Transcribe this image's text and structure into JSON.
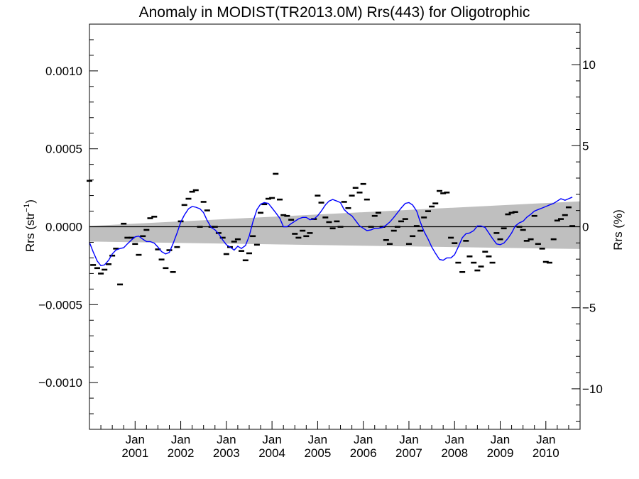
{
  "chart_data": {
    "type": "scatter",
    "title": "Anomaly in MODIST(TR2013.0M) Rrs(443) for Oligotrophic",
    "ylabel_left": {
      "text": "Rrs (str",
      "sup": "−1",
      "close": ")"
    },
    "ylabel_right": "Rrs (%)",
    "xlim": [
      2000.0,
      2010.75
    ],
    "ylim_left": [
      -0.0013,
      0.0013
    ],
    "ylim_right": [
      -12.5,
      12.5
    ],
    "left_ticks": [
      {
        "value": 0.001,
        "label": "0.0010"
      },
      {
        "value": 0.0005,
        "label": "0.0005"
      },
      {
        "value": 0.0,
        "label": "0.0000"
      },
      {
        "value": -0.0005,
        "label": "−0.0005"
      },
      {
        "value": -0.001,
        "label": "−0.0010"
      }
    ],
    "right_ticks": [
      {
        "value": 10,
        "label": "10"
      },
      {
        "value": 5,
        "label": "5"
      },
      {
        "value": 0,
        "label": "0"
      },
      {
        "value": -5,
        "label": "−5"
      },
      {
        "value": -10,
        "label": "−10"
      }
    ],
    "x_ticks": [
      {
        "value": 2001.0,
        "month": "Jan",
        "year": "2001"
      },
      {
        "value": 2002.0,
        "month": "Jan",
        "year": "2002"
      },
      {
        "value": 2003.0,
        "month": "Jan",
        "year": "2003"
      },
      {
        "value": 2004.0,
        "month": "Jan",
        "year": "2004"
      },
      {
        "value": 2005.0,
        "month": "Jan",
        "year": "2005"
      },
      {
        "value": 2006.0,
        "month": "Jan",
        "year": "2006"
      },
      {
        "value": 2007.0,
        "month": "Jan",
        "year": "2007"
      },
      {
        "value": 2008.0,
        "month": "Jan",
        "year": "2008"
      },
      {
        "value": 2009.0,
        "month": "Jan",
        "year": "2009"
      },
      {
        "value": 2010.0,
        "month": "Jan",
        "year": "2010"
      }
    ],
    "grid": false,
    "zero_line": true,
    "colors": {
      "points": "#000000",
      "smooth": "#0000ff",
      "band": "#bfbfbf",
      "zero": "#000000"
    },
    "band": {
      "start": 2000.0,
      "end": 2010.75,
      "upper": [
        5e-06,
        0.000163
      ],
      "lower": [
        -9.5e-05,
        -0.000143
      ]
    },
    "points": [
      [
        2000.0,
        0.000295
      ],
      [
        2000.08,
        -0.000245
      ],
      [
        2000.17,
        -0.000265
      ],
      [
        2000.25,
        -0.0003
      ],
      [
        2000.33,
        -0.000275
      ],
      [
        2000.42,
        -0.00024
      ],
      [
        2000.5,
        -0.000185
      ],
      [
        2000.58,
        -0.00014
      ],
      [
        2000.67,
        -0.00037
      ],
      [
        2000.75,
        2e-05
      ],
      [
        2000.83,
        -7e-05
      ],
      [
        2000.92,
        -7e-05
      ],
      [
        2001.0,
        -0.00011
      ],
      [
        2001.08,
        -0.00018
      ],
      [
        2001.17,
        -6e-05
      ],
      [
        2001.25,
        -2e-05
      ],
      [
        2001.33,
        5.5e-05
      ],
      [
        2001.42,
        6.5e-05
      ],
      [
        2001.5,
        -0.000145
      ],
      [
        2001.58,
        -0.00021
      ],
      [
        2001.67,
        -0.000265
      ],
      [
        2001.75,
        -0.00015
      ],
      [
        2001.83,
        -0.00029
      ],
      [
        2001.92,
        -0.00013
      ],
      [
        2002.0,
        3.5e-05
      ],
      [
        2002.08,
        0.00014
      ],
      [
        2002.17,
        0.00018
      ],
      [
        2002.25,
        0.000225
      ],
      [
        2002.33,
        0.000235
      ],
      [
        2002.42,
        0.0
      ],
      [
        2002.5,
        0.00016
      ],
      [
        2002.58,
        0.000105
      ],
      [
        2002.67,
        0.0
      ],
      [
        2002.75,
        0.0
      ],
      [
        2002.83,
        -4e-05
      ],
      [
        2002.92,
        -7e-05
      ],
      [
        2003.0,
        -0.000175
      ],
      [
        2003.08,
        -0.00013
      ],
      [
        2003.17,
        -9.5e-05
      ],
      [
        2003.25,
        -8e-05
      ],
      [
        2003.33,
        -0.000155
      ],
      [
        2003.42,
        -0.000215
      ],
      [
        2003.5,
        -0.00017
      ],
      [
        2003.58,
        -6e-05
      ],
      [
        2003.67,
        -0.000115
      ],
      [
        2003.75,
        9e-05
      ],
      [
        2003.83,
        0.000145
      ],
      [
        2003.92,
        0.00018
      ],
      [
        2004.0,
        0.000185
      ],
      [
        2004.08,
        0.00034
      ],
      [
        2004.17,
        0.000175
      ],
      [
        2004.25,
        7.5e-05
      ],
      [
        2004.33,
        7e-05
      ],
      [
        2004.42,
        4.5e-05
      ],
      [
        2004.5,
        -4.5e-05
      ],
      [
        2004.58,
        -7e-05
      ],
      [
        2004.67,
        -2.5e-05
      ],
      [
        2004.75,
        -6e-05
      ],
      [
        2004.83,
        -4e-05
      ],
      [
        2004.92,
        5e-05
      ],
      [
        2005.0,
        0.0002
      ],
      [
        2005.08,
        0.000155
      ],
      [
        2005.17,
        6e-05
      ],
      [
        2005.25,
        3e-05
      ],
      [
        2005.33,
        -1e-05
      ],
      [
        2005.42,
        3.5e-05
      ],
      [
        2005.5,
        0.0
      ],
      [
        2005.58,
        0.00016
      ],
      [
        2005.67,
        0.00012
      ],
      [
        2005.75,
        0.0002
      ],
      [
        2005.83,
        0.00025
      ],
      [
        2005.92,
        0.00022
      ],
      [
        2006.0,
        0.000275
      ],
      [
        2006.08,
        0.000175
      ],
      [
        2006.17,
        0.0
      ],
      [
        2006.25,
        7e-05
      ],
      [
        2006.33,
        9e-05
      ],
      [
        2006.42,
        0.0
      ],
      [
        2006.5,
        -8.5e-05
      ],
      [
        2006.58,
        -0.00011
      ],
      [
        2006.67,
        -2.5e-05
      ],
      [
        2006.75,
        0.0
      ],
      [
        2006.83,
        3.5e-05
      ],
      [
        2006.92,
        5e-05
      ],
      [
        2007.0,
        -0.00011
      ],
      [
        2007.08,
        -6e-05
      ],
      [
        2007.17,
        5e-06
      ],
      [
        2007.25,
        -2.5e-05
      ],
      [
        2007.33,
        6e-05
      ],
      [
        2007.42,
        0.0001
      ],
      [
        2007.5,
        0.00013
      ],
      [
        2007.58,
        0.00015
      ],
      [
        2007.67,
        0.00023
      ],
      [
        2007.75,
        0.000215
      ],
      [
        2007.83,
        0.00022
      ],
      [
        2007.92,
        -7e-05
      ],
      [
        2008.0,
        -0.000105
      ],
      [
        2008.08,
        -0.00023
      ],
      [
        2008.17,
        -0.00029
      ],
      [
        2008.25,
        -9e-05
      ],
      [
        2008.33,
        -0.00019
      ],
      [
        2008.42,
        -0.00023
      ],
      [
        2008.5,
        -0.00028
      ],
      [
        2008.58,
        -0.000255
      ],
      [
        2008.67,
        -0.00016
      ],
      [
        2008.75,
        -0.00019
      ],
      [
        2008.83,
        -0.00023
      ],
      [
        2008.92,
        -4e-05
      ],
      [
        2009.0,
        -8e-05
      ],
      [
        2009.08,
        -1e-05
      ],
      [
        2009.17,
        8e-05
      ],
      [
        2009.25,
        9e-05
      ],
      [
        2009.33,
        9.5e-05
      ],
      [
        2009.42,
        0.0
      ],
      [
        2009.5,
        -2e-05
      ],
      [
        2009.58,
        -9e-05
      ],
      [
        2009.67,
        -8e-05
      ],
      [
        2009.75,
        7e-05
      ],
      [
        2009.83,
        -0.00011
      ],
      [
        2009.92,
        -0.00014
      ],
      [
        2010.0,
        -0.000225
      ],
      [
        2010.08,
        -0.00023
      ],
      [
        2010.17,
        -8e-05
      ],
      [
        2010.25,
        4e-05
      ],
      [
        2010.33,
        5e-05
      ],
      [
        2010.42,
        7.5e-05
      ],
      [
        2010.5,
        0.000125
      ],
      [
        2010.58,
        5e-06
      ]
    ],
    "smoothed": [
      [
        2000.0,
        -0.0001
      ],
      [
        2000.08,
        -0.00016
      ],
      [
        2000.17,
        -0.00022
      ],
      [
        2000.25,
        -0.00025
      ],
      [
        2000.33,
        -0.000245
      ],
      [
        2000.42,
        -0.000215
      ],
      [
        2000.5,
        -0.000175
      ],
      [
        2000.58,
        -0.00015
      ],
      [
        2000.67,
        -0.00014
      ],
      [
        2000.75,
        -0.000135
      ],
      [
        2000.83,
        -0.00011
      ],
      [
        2000.92,
        -8.5e-05
      ],
      [
        2001.0,
        -6.5e-05
      ],
      [
        2001.08,
        -6e-05
      ],
      [
        2001.17,
        -8e-05
      ],
      [
        2001.25,
        -9.5e-05
      ],
      [
        2001.33,
        -9.5e-05
      ],
      [
        2001.42,
        -0.000105
      ],
      [
        2001.5,
        -0.00013
      ],
      [
        2001.58,
        -0.00016
      ],
      [
        2001.67,
        -0.000175
      ],
      [
        2001.75,
        -0.000165
      ],
      [
        2001.83,
        -0.00011
      ],
      [
        2001.92,
        -4e-05
      ],
      [
        2002.0,
        3e-05
      ],
      [
        2002.08,
        7.5e-05
      ],
      [
        2002.17,
        0.000115
      ],
      [
        2002.25,
        0.00013
      ],
      [
        2002.33,
        0.000125
      ],
      [
        2002.42,
        0.000115
      ],
      [
        2002.5,
        9e-05
      ],
      [
        2002.58,
        4e-05
      ],
      [
        2002.67,
        -5e-06
      ],
      [
        2002.75,
        -2e-05
      ],
      [
        2002.83,
        -4.5e-05
      ],
      [
        2002.92,
        -8.5e-05
      ],
      [
        2003.0,
        -0.000115
      ],
      [
        2003.08,
        -0.00013
      ],
      [
        2003.17,
        -0.00015
      ],
      [
        2003.25,
        -0.000125
      ],
      [
        2003.33,
        -0.00014
      ],
      [
        2003.42,
        -0.00012
      ],
      [
        2003.5,
        -6e-05
      ],
      [
        2003.58,
        3e-05
      ],
      [
        2003.67,
        0.00011
      ],
      [
        2003.75,
        0.000145
      ],
      [
        2003.83,
        0.000155
      ],
      [
        2003.92,
        0.00015
      ],
      [
        2004.0,
        0.00012
      ],
      [
        2004.08,
        9e-05
      ],
      [
        2004.17,
        5.5e-05
      ],
      [
        2004.25,
        0.0
      ],
      [
        2004.33,
        0.0
      ],
      [
        2004.42,
        2e-05
      ],
      [
        2004.5,
        3.5e-05
      ],
      [
        2004.58,
        5e-05
      ],
      [
        2004.67,
        6e-05
      ],
      [
        2004.75,
        6e-05
      ],
      [
        2004.83,
        4.5e-05
      ],
      [
        2004.92,
        5e-05
      ],
      [
        2005.0,
        7e-05
      ],
      [
        2005.08,
        0.0001
      ],
      [
        2005.17,
        0.00014
      ],
      [
        2005.25,
        0.000165
      ],
      [
        2005.33,
        0.000175
      ],
      [
        2005.42,
        0.000165
      ],
      [
        2005.5,
        0.000155
      ],
      [
        2005.58,
        0.00011
      ],
      [
        2005.67,
        8.5e-05
      ],
      [
        2005.75,
        7e-05
      ],
      [
        2005.83,
        4e-05
      ],
      [
        2005.92,
        5e-06
      ],
      [
        2006.0,
        -1e-05
      ],
      [
        2006.08,
        -2.5e-05
      ],
      [
        2006.17,
        -2e-05
      ],
      [
        2006.25,
        -1e-05
      ],
      [
        2006.33,
        -1e-05
      ],
      [
        2006.42,
        -5e-06
      ],
      [
        2006.5,
        1e-05
      ],
      [
        2006.58,
        3e-05
      ],
      [
        2006.67,
        6e-05
      ],
      [
        2006.75,
        9e-05
      ],
      [
        2006.83,
        0.00012
      ],
      [
        2006.92,
        0.00015
      ],
      [
        2007.0,
        0.000155
      ],
      [
        2007.08,
        0.00014
      ],
      [
        2007.17,
        0.0001
      ],
      [
        2007.25,
        3e-05
      ],
      [
        2007.33,
        -3e-05
      ],
      [
        2007.42,
        -8e-05
      ],
      [
        2007.5,
        -0.00013
      ],
      [
        2007.58,
        -0.00017
      ],
      [
        2007.67,
        -0.00021
      ],
      [
        2007.75,
        -0.000215
      ],
      [
        2007.83,
        -0.0002
      ],
      [
        2007.92,
        -0.0002
      ],
      [
        2008.0,
        -0.00018
      ],
      [
        2008.08,
        -0.00013
      ],
      [
        2008.17,
        -7e-05
      ],
      [
        2008.25,
        -4.5e-05
      ],
      [
        2008.33,
        -4e-05
      ],
      [
        2008.42,
        -2.5e-05
      ],
      [
        2008.5,
        5e-06
      ],
      [
        2008.58,
        5e-06
      ],
      [
        2008.67,
        -5e-06
      ],
      [
        2008.75,
        -4e-05
      ],
      [
        2008.83,
        -7.5e-05
      ],
      [
        2008.92,
        -0.00011
      ],
      [
        2009.0,
        -0.000115
      ],
      [
        2009.08,
        -0.000105
      ],
      [
        2009.17,
        -7.5e-05
      ],
      [
        2009.25,
        -4e-05
      ],
      [
        2009.33,
        5e-06
      ],
      [
        2009.42,
        2.5e-05
      ],
      [
        2009.5,
        3.5e-05
      ],
      [
        2009.58,
        6e-05
      ],
      [
        2009.67,
        8e-05
      ],
      [
        2009.75,
        0.0001
      ],
      [
        2009.83,
        0.00011
      ],
      [
        2009.92,
        0.00012
      ],
      [
        2010.0,
        0.00013
      ],
      [
        2010.08,
        0.00014
      ],
      [
        2010.17,
        0.00015
      ],
      [
        2010.25,
        0.000165
      ],
      [
        2010.33,
        0.00018
      ],
      [
        2010.42,
        0.00017
      ],
      [
        2010.5,
        0.00018
      ],
      [
        2010.58,
        0.00019
      ]
    ]
  }
}
